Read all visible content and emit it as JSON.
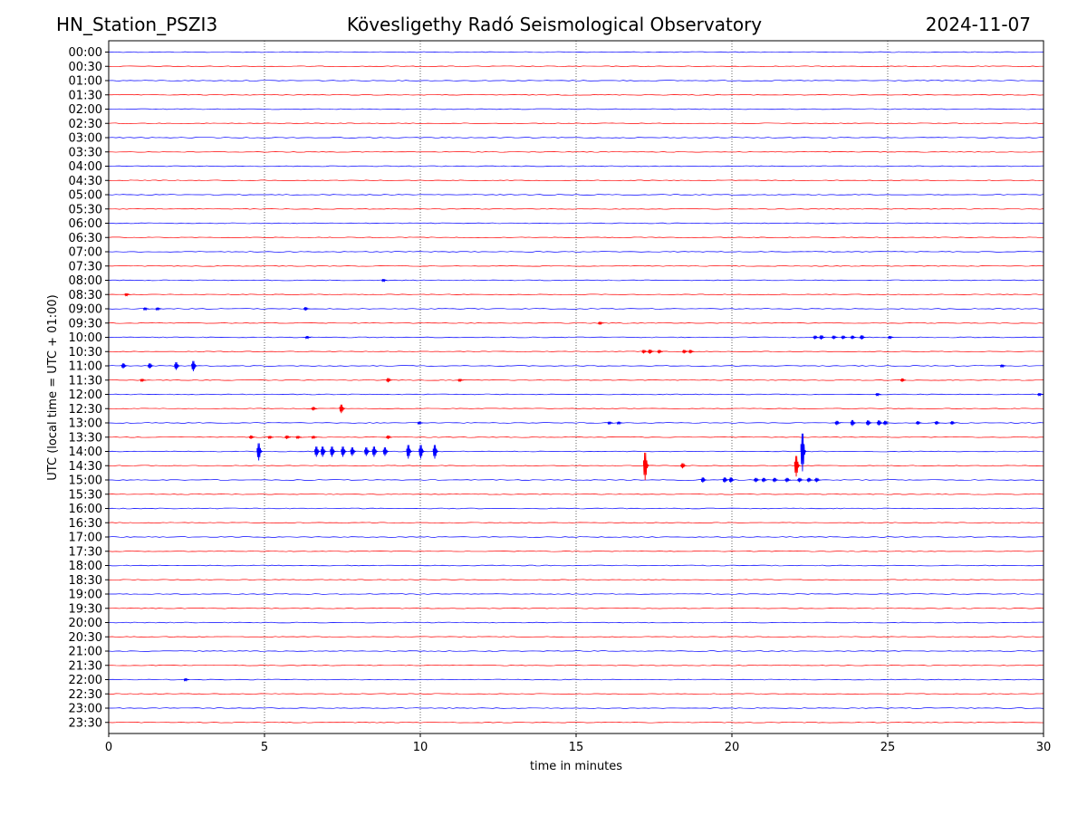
{
  "header": {
    "station": "HN_Station_PSZI3",
    "observatory": "Kövesligethy Radó Seismological Observatory",
    "date": "2024-11-07"
  },
  "chart_data": {
    "type": "line",
    "title": "Kövesligethy Radó Seismological Observatory",
    "xlabel": "time in minutes",
    "ylabel": "UTC (local time = UTC + 01:00)",
    "xlim": [
      0,
      30
    ],
    "x_ticks": [
      0,
      5,
      10,
      15,
      20,
      25,
      30
    ],
    "grid": "vertical dotted at 5, 10, 15, 20, 25",
    "trace_colors": [
      "#0000ff",
      "#ff0000"
    ],
    "rows": [
      "00:00",
      "00:30",
      "01:00",
      "01:30",
      "02:00",
      "02:30",
      "03:00",
      "03:30",
      "04:00",
      "04:30",
      "05:00",
      "05:30",
      "06:00",
      "06:30",
      "07:00",
      "07:30",
      "08:00",
      "08:30",
      "09:00",
      "09:30",
      "10:00",
      "10:30",
      "11:00",
      "11:30",
      "12:00",
      "12:30",
      "13:00",
      "13:30",
      "14:00",
      "14:30",
      "15:00",
      "15:30",
      "16:00",
      "16:30",
      "17:00",
      "17:30",
      "18:00",
      "18:30",
      "19:00",
      "19:30",
      "20:00",
      "20:30",
      "21:00",
      "21:30",
      "22:00",
      "22:30",
      "23:00",
      "23:30"
    ],
    "events": [
      {
        "row": "08:00",
        "t": 8.85,
        "amp": 1.5
      },
      {
        "row": "08:30",
        "t": 0.6,
        "amp": 1.5
      },
      {
        "row": "09:00",
        "t": 1.2,
        "amp": 1.5
      },
      {
        "row": "09:00",
        "t": 1.6,
        "amp": 1.5
      },
      {
        "row": "09:00",
        "t": 6.35,
        "amp": 2
      },
      {
        "row": "09:30",
        "t": 15.8,
        "amp": 1.5
      },
      {
        "row": "10:00",
        "t": 6.4,
        "amp": 1.5
      },
      {
        "row": "10:00",
        "t": 22.7,
        "amp": 2
      },
      {
        "row": "10:00",
        "t": 22.9,
        "amp": 2.5
      },
      {
        "row": "10:00",
        "t": 23.3,
        "amp": 2
      },
      {
        "row": "10:00",
        "t": 23.6,
        "amp": 2
      },
      {
        "row": "10:00",
        "t": 23.9,
        "amp": 2
      },
      {
        "row": "10:00",
        "t": 24.2,
        "amp": 2.5
      },
      {
        "row": "10:00",
        "t": 25.1,
        "amp": 1.5
      },
      {
        "row": "10:30",
        "t": 17.2,
        "amp": 2
      },
      {
        "row": "10:30",
        "t": 17.4,
        "amp": 2.5
      },
      {
        "row": "10:30",
        "t": 17.7,
        "amp": 2
      },
      {
        "row": "10:30",
        "t": 18.5,
        "amp": 2
      },
      {
        "row": "10:30",
        "t": 18.7,
        "amp": 2
      },
      {
        "row": "11:00",
        "t": 0.5,
        "amp": 3
      },
      {
        "row": "11:00",
        "t": 1.35,
        "amp": 3
      },
      {
        "row": "11:00",
        "t": 2.2,
        "amp": 4.5
      },
      {
        "row": "11:00",
        "t": 2.75,
        "amp": 6
      },
      {
        "row": "11:00",
        "t": 28.7,
        "amp": 1.5
      },
      {
        "row": "11:30",
        "t": 1.1,
        "amp": 1.5
      },
      {
        "row": "11:30",
        "t": 9.0,
        "amp": 2.5
      },
      {
        "row": "11:30",
        "t": 11.3,
        "amp": 1.5
      },
      {
        "row": "11:30",
        "t": 25.5,
        "amp": 2
      },
      {
        "row": "12:00",
        "t": 24.7,
        "amp": 1.5
      },
      {
        "row": "12:00",
        "t": 29.9,
        "amp": 1.5
      },
      {
        "row": "12:30",
        "t": 6.6,
        "amp": 2
      },
      {
        "row": "12:30",
        "t": 7.5,
        "amp": 5
      },
      {
        "row": "13:00",
        "t": 10.0,
        "amp": 1.5
      },
      {
        "row": "13:00",
        "t": 16.1,
        "amp": 1.5
      },
      {
        "row": "13:00",
        "t": 16.4,
        "amp": 1.5
      },
      {
        "row": "13:00",
        "t": 23.4,
        "amp": 2.5
      },
      {
        "row": "13:00",
        "t": 23.9,
        "amp": 3.5
      },
      {
        "row": "13:00",
        "t": 24.4,
        "amp": 3
      },
      {
        "row": "13:00",
        "t": 24.75,
        "amp": 3
      },
      {
        "row": "13:00",
        "t": 24.95,
        "amp": 2.5
      },
      {
        "row": "13:00",
        "t": 26.0,
        "amp": 2
      },
      {
        "row": "13:00",
        "t": 26.6,
        "amp": 2
      },
      {
        "row": "13:00",
        "t": 27.1,
        "amp": 2
      },
      {
        "row": "13:30",
        "t": 4.6,
        "amp": 2
      },
      {
        "row": "13:30",
        "t": 5.2,
        "amp": 1.5
      },
      {
        "row": "13:30",
        "t": 5.75,
        "amp": 2
      },
      {
        "row": "13:30",
        "t": 6.1,
        "amp": 1.5
      },
      {
        "row": "13:30",
        "t": 6.6,
        "amp": 1.5
      },
      {
        "row": "13:30",
        "t": 9.0,
        "amp": 2
      },
      {
        "row": "14:00",
        "t": 4.85,
        "amp": 10
      },
      {
        "row": "14:00",
        "t": 6.7,
        "amp": 6
      },
      {
        "row": "14:00",
        "t": 6.9,
        "amp": 6
      },
      {
        "row": "14:00",
        "t": 7.2,
        "amp": 6
      },
      {
        "row": "14:00",
        "t": 7.55,
        "amp": 6
      },
      {
        "row": "14:00",
        "t": 7.85,
        "amp": 5
      },
      {
        "row": "14:00",
        "t": 8.3,
        "amp": 5
      },
      {
        "row": "14:00",
        "t": 8.55,
        "amp": 6
      },
      {
        "row": "14:00",
        "t": 8.9,
        "amp": 5
      },
      {
        "row": "14:00",
        "t": 9.65,
        "amp": 8
      },
      {
        "row": "14:00",
        "t": 10.05,
        "amp": 8
      },
      {
        "row": "14:00",
        "t": 10.5,
        "amp": 8
      },
      {
        "row": "14:00",
        "t": 22.3,
        "amp": 22
      },
      {
        "row": "14:30",
        "t": 17.25,
        "amp": 16
      },
      {
        "row": "14:30",
        "t": 18.45,
        "amp": 3
      },
      {
        "row": "14:30",
        "t": 22.1,
        "amp": 12
      },
      {
        "row": "15:00",
        "t": 19.1,
        "amp": 3
      },
      {
        "row": "15:00",
        "t": 19.8,
        "amp": 3
      },
      {
        "row": "15:00",
        "t": 20.0,
        "amp": 3
      },
      {
        "row": "15:00",
        "t": 20.8,
        "amp": 2.5
      },
      {
        "row": "15:00",
        "t": 21.05,
        "amp": 2.5
      },
      {
        "row": "15:00",
        "t": 21.4,
        "amp": 2.5
      },
      {
        "row": "15:00",
        "t": 21.8,
        "amp": 2.5
      },
      {
        "row": "15:00",
        "t": 22.2,
        "amp": 2.5
      },
      {
        "row": "15:00",
        "t": 22.5,
        "amp": 2.5
      },
      {
        "row": "15:00",
        "t": 22.75,
        "amp": 2.5
      },
      {
        "row": "22:00",
        "t": 2.5,
        "amp": 1.5
      }
    ]
  }
}
